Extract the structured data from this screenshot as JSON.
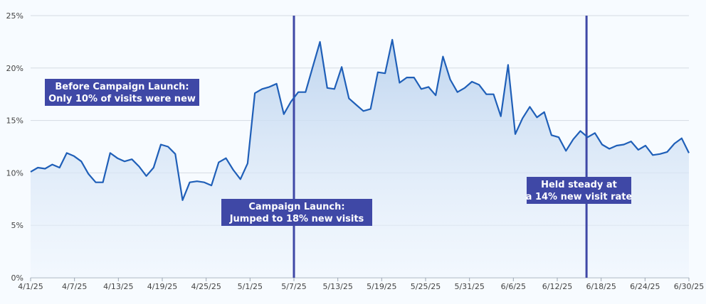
{
  "chart_data": {
    "type": "area",
    "title": "",
    "xlabel": "",
    "ylabel": "",
    "ylim": [
      0,
      25
    ],
    "y_ticks": [
      {
        "value": 0,
        "label": "0%"
      },
      {
        "value": 5,
        "label": "5%"
      },
      {
        "value": 10,
        "label": "10%"
      },
      {
        "value": 15,
        "label": "15%"
      },
      {
        "value": 20,
        "label": "20%"
      },
      {
        "value": 25,
        "label": "25%"
      }
    ],
    "x_start": "2025-04-01",
    "x_end": "2025-06-30",
    "x_ticks": [
      {
        "date": "2025-04-01",
        "label": "4/1/25"
      },
      {
        "date": "2025-04-07",
        "label": "4/7/25"
      },
      {
        "date": "2025-04-13",
        "label": "4/13/25"
      },
      {
        "date": "2025-04-19",
        "label": "4/19/25"
      },
      {
        "date": "2025-04-25",
        "label": "4/25/25"
      },
      {
        "date": "2025-05-01",
        "label": "5/1/25"
      },
      {
        "date": "2025-05-07",
        "label": "5/7/25"
      },
      {
        "date": "2025-05-13",
        "label": "5/13/25"
      },
      {
        "date": "2025-05-19",
        "label": "5/19/25"
      },
      {
        "date": "2025-05-25",
        "label": "5/25/25"
      },
      {
        "date": "2025-05-31",
        "label": "5/31/25"
      },
      {
        "date": "2025-06-06",
        "label": "6/6/25"
      },
      {
        "date": "2025-06-12",
        "label": "6/12/25"
      },
      {
        "date": "2025-06-18",
        "label": "6/18/25"
      },
      {
        "date": "2025-06-24",
        "label": "6/24/25"
      },
      {
        "date": "2025-06-30",
        "label": "6/30/25"
      }
    ],
    "grid": true,
    "legend": "none",
    "series": [
      {
        "color": "#1f5fb8",
        "values": [
          10.1,
          10.5,
          10.4,
          10.8,
          10.5,
          11.9,
          11.6,
          11.1,
          9.9,
          9.1,
          9.1,
          11.9,
          11.4,
          11.1,
          11.3,
          10.6,
          9.7,
          10.5,
          12.7,
          12.5,
          11.8,
          7.4,
          9.1,
          9.2,
          9.1,
          8.8,
          11.0,
          11.4,
          10.3,
          9.4,
          10.9,
          17.6,
          18.0,
          18.2,
          18.5,
          15.6,
          16.8,
          17.7,
          17.7,
          20.1,
          22.5,
          18.1,
          18.0,
          20.1,
          17.1,
          16.5,
          15.9,
          16.1,
          19.6,
          19.5,
          22.7,
          18.6,
          19.1,
          19.1,
          18.0,
          18.2,
          17.4,
          21.1,
          18.9,
          17.7,
          18.1,
          18.7,
          18.4,
          17.5,
          17.5,
          15.4,
          20.3,
          13.7,
          15.2,
          16.3,
          15.3,
          15.8,
          13.6,
          13.4,
          12.1,
          13.2,
          14.0,
          13.4,
          13.8,
          12.7,
          12.3,
          12.6,
          12.7,
          13.0,
          12.2,
          12.6,
          11.7,
          11.8,
          12.0,
          12.8,
          13.3,
          11.9
        ]
      }
    ],
    "reference_lines": [
      {
        "date": "2025-05-07",
        "color": "#3f48a6"
      },
      {
        "date": "2025-06-16",
        "color": "#3f48a6"
      }
    ],
    "annotations": [
      {
        "lines": [
          "Before Campaign Launch:",
          "Only 10% of visits were new"
        ],
        "bg": "#3f48a6"
      },
      {
        "lines": [
          "Campaign Launch:",
          "Jumped to 18% new visits"
        ],
        "bg": "#3f48a6"
      },
      {
        "lines": [
          "Held steady at",
          "a 14% new visit rate"
        ],
        "bg": "#3f48a6"
      }
    ]
  }
}
